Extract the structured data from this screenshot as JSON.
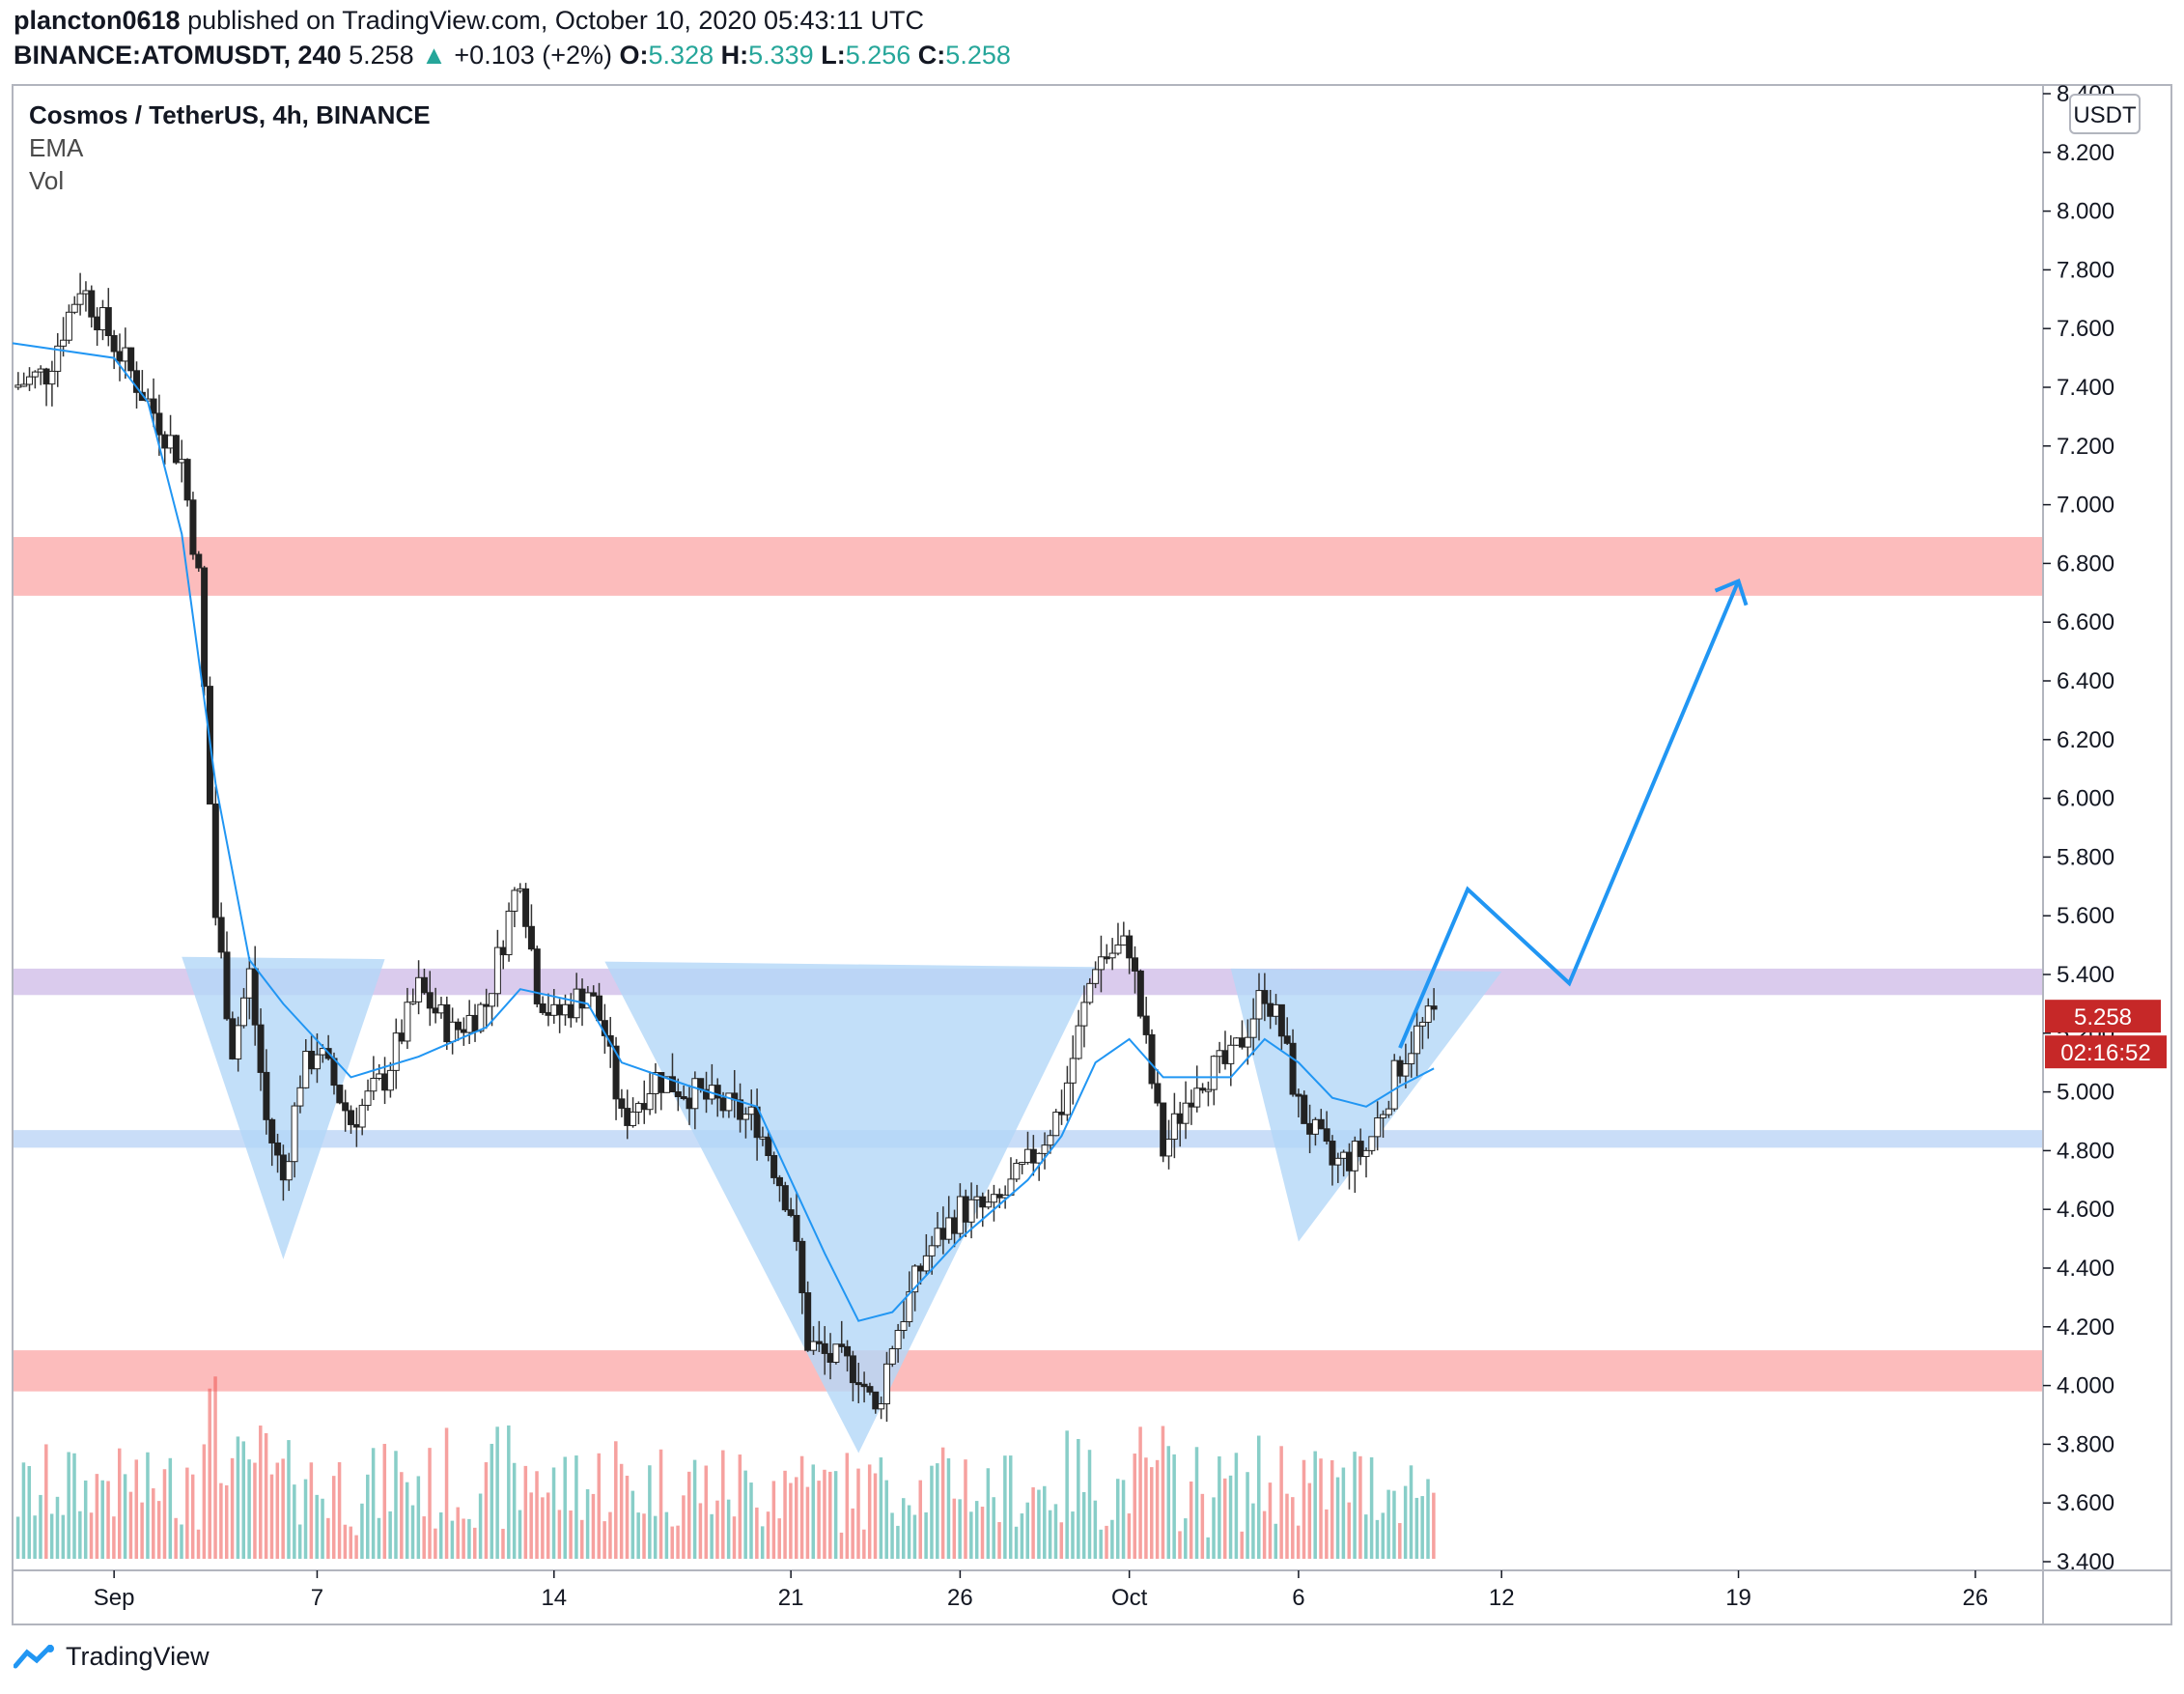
{
  "header": {
    "publisher": "plancton0618",
    "published_text": "published on TradingView.com, October 10, 2020 05:43:11 UTC",
    "symbol": "BINANCE:ATOMUSDT, 240",
    "last": "5.258",
    "arrow": "▲",
    "change": "+0.103 (+2%)",
    "o_label": "O:",
    "o": "5.328",
    "h_label": "H:",
    "h": "5.339",
    "l_label": "L:",
    "l": "5.256",
    "c_label": "C:",
    "c": "5.258"
  },
  "legend": {
    "title": "Cosmos / TetherUS, 4h, BINANCE",
    "ema": "EMA",
    "vol": "Vol"
  },
  "price_axis": {
    "currency": "USDT",
    "last_price_label": "5.258",
    "countdown": "02:16:52"
  },
  "footer": {
    "brand": "TradingView",
    "logo_icon": "tradingview-logo-icon"
  },
  "colors": {
    "up": "#26a69a",
    "down": "#ef5350",
    "ema": "#2196f3",
    "resistance_zone": "#fcb8b8",
    "neckline_zone": "#d8c8ec",
    "support_zone": "#c6dbf8",
    "pattern_fill": "#b3d7f8",
    "projection": "#2196f3",
    "label_bg": "#c62828"
  },
  "chart_data": {
    "type": "candlestick",
    "title": "Cosmos / TetherUS, 4h, BINANCE",
    "symbol": "ATOMUSDT",
    "timeframe": "4h",
    "ylim": [
      3.4,
      8.4
    ],
    "yticks": [
      3.4,
      3.6,
      3.8,
      4.0,
      4.2,
      4.4,
      4.6,
      4.8,
      5.0,
      5.2,
      5.4,
      5.6,
      5.8,
      6.0,
      6.2,
      6.4,
      6.6,
      6.8,
      7.0,
      7.2,
      7.4,
      7.6,
      7.8,
      8.0,
      8.2,
      8.4
    ],
    "ytick_labels": [
      "3.400",
      "3.600",
      "3.800",
      "4.000",
      "4.200",
      "4.400",
      "4.600",
      "4.800",
      "5.000",
      "5.200",
      "5.400",
      "5.600",
      "5.800",
      "6.000",
      "6.200",
      "6.400",
      "6.600",
      "6.800",
      "7.000",
      "7.200",
      "7.400",
      "7.600",
      "7.800",
      "8.000",
      "8.200",
      "8.400"
    ],
    "xlim": [
      "2020-08-29",
      "2020-10-28"
    ],
    "xticks": [
      {
        "date": "2020-09-01",
        "label": "Sep"
      },
      {
        "date": "2020-09-07",
        "label": "7"
      },
      {
        "date": "2020-09-14",
        "label": "14"
      },
      {
        "date": "2020-09-21",
        "label": "21"
      },
      {
        "date": "2020-09-26",
        "label": "26"
      },
      {
        "date": "2020-10-01",
        "label": "Oct"
      },
      {
        "date": "2020-10-06",
        "label": "6"
      },
      {
        "date": "2020-10-12",
        "label": "12"
      },
      {
        "date": "2020-10-19",
        "label": "19"
      },
      {
        "date": "2020-10-26",
        "label": "26"
      }
    ],
    "last_price": 5.258,
    "zones": [
      {
        "name": "resistance",
        "from": 6.69,
        "to": 6.89
      },
      {
        "name": "neckline",
        "from": 5.33,
        "to": 5.42
      },
      {
        "name": "support-mid",
        "from": 4.81,
        "to": 4.87
      },
      {
        "name": "support-low",
        "from": 3.98,
        "to": 4.12
      }
    ],
    "inverse_head_shoulders": {
      "neckline": [
        [
          "2020-09-03",
          5.46
        ],
        [
          "2020-10-12",
          5.41
        ]
      ],
      "left_shoulder_low": [
        "2020-09-06",
        4.43
      ],
      "head_low": [
        "2020-09-23",
        3.77
      ],
      "right_shoulder_low": [
        "2020-10-06",
        4.49
      ]
    },
    "projection_path": [
      [
        "2020-10-09",
        5.15
      ],
      [
        "2020-10-11",
        5.69
      ],
      [
        "2020-10-14",
        5.37
      ],
      [
        "2020-10-19",
        6.74
      ]
    ],
    "series": [
      {
        "name": "close (approx.)",
        "points": [
          [
            "2020-08-29",
            7.4
          ],
          [
            "2020-08-30",
            7.45
          ],
          [
            "2020-08-31",
            7.75
          ],
          [
            "2020-09-01",
            7.55
          ],
          [
            "2020-09-02",
            7.35
          ],
          [
            "2020-09-03",
            7.15
          ],
          [
            "2020-09-03T12",
            6.75
          ],
          [
            "2020-09-04",
            5.6
          ],
          [
            "2020-09-04T12",
            5.15
          ],
          [
            "2020-09-05",
            5.4
          ],
          [
            "2020-09-05T12",
            4.9
          ],
          [
            "2020-09-06",
            4.7
          ],
          [
            "2020-09-06T12",
            5.05
          ],
          [
            "2020-09-07",
            5.15
          ],
          [
            "2020-09-08",
            4.9
          ],
          [
            "2020-09-09",
            5.05
          ],
          [
            "2020-09-10",
            5.35
          ],
          [
            "2020-09-11",
            5.2
          ],
          [
            "2020-09-12",
            5.3
          ],
          [
            "2020-09-13",
            5.75
          ],
          [
            "2020-09-13T12",
            5.35
          ],
          [
            "2020-09-14",
            5.25
          ],
          [
            "2020-09-15",
            5.35
          ],
          [
            "2020-09-15T12",
            5.2
          ],
          [
            "2020-09-16",
            4.9
          ],
          [
            "2020-09-17",
            5.05
          ],
          [
            "2020-09-18",
            5.0
          ],
          [
            "2020-09-19",
            4.95
          ],
          [
            "2020-09-20",
            4.9
          ],
          [
            "2020-09-21",
            4.6
          ],
          [
            "2020-09-21T12",
            4.15
          ],
          [
            "2020-09-22",
            4.1
          ],
          [
            "2020-09-23",
            4.05
          ],
          [
            "2020-09-23T12",
            3.9
          ],
          [
            "2020-09-24",
            4.15
          ],
          [
            "2020-09-25",
            4.45
          ],
          [
            "2020-09-26",
            4.6
          ],
          [
            "2020-09-27",
            4.6
          ],
          [
            "2020-09-28",
            4.75
          ],
          [
            "2020-09-29",
            4.95
          ],
          [
            "2020-09-30",
            5.45
          ],
          [
            "2020-10-01",
            5.5
          ],
          [
            "2020-10-01T12",
            5.15
          ],
          [
            "2020-10-02",
            4.8
          ],
          [
            "2020-10-03",
            5.05
          ],
          [
            "2020-10-04",
            5.1
          ],
          [
            "2020-10-05",
            5.35
          ],
          [
            "2020-10-05T12",
            5.2
          ],
          [
            "2020-10-06",
            4.95
          ],
          [
            "2020-10-07",
            4.75
          ],
          [
            "2020-10-08",
            4.8
          ],
          [
            "2020-10-08T12",
            4.95
          ],
          [
            "2020-10-09",
            5.1
          ],
          [
            "2020-10-09T12",
            5.2
          ],
          [
            "2020-10-10",
            5.258
          ]
        ]
      },
      {
        "name": "EMA",
        "points": [
          [
            "2020-08-29",
            7.55
          ],
          [
            "2020-09-01",
            7.5
          ],
          [
            "2020-09-02",
            7.35
          ],
          [
            "2020-09-03",
            6.9
          ],
          [
            "2020-09-04",
            6.05
          ],
          [
            "2020-09-05",
            5.45
          ],
          [
            "2020-09-06",
            5.3
          ],
          [
            "2020-09-08",
            5.05
          ],
          [
            "2020-09-10",
            5.12
          ],
          [
            "2020-09-12",
            5.22
          ],
          [
            "2020-09-13",
            5.35
          ],
          [
            "2020-09-15",
            5.3
          ],
          [
            "2020-09-16",
            5.1
          ],
          [
            "2020-09-18",
            5.02
          ],
          [
            "2020-09-20",
            4.95
          ],
          [
            "2020-09-21",
            4.7
          ],
          [
            "2020-09-22",
            4.45
          ],
          [
            "2020-09-23",
            4.22
          ],
          [
            "2020-09-24",
            4.25
          ],
          [
            "2020-09-26",
            4.5
          ],
          [
            "2020-09-28",
            4.7
          ],
          [
            "2020-09-29",
            4.85
          ],
          [
            "2020-09-30",
            5.1
          ],
          [
            "2020-10-01",
            5.18
          ],
          [
            "2020-10-02",
            5.05
          ],
          [
            "2020-10-04",
            5.05
          ],
          [
            "2020-10-05",
            5.18
          ],
          [
            "2020-10-06",
            5.1
          ],
          [
            "2020-10-07",
            4.98
          ],
          [
            "2020-10-08",
            4.95
          ],
          [
            "2020-10-09",
            5.02
          ],
          [
            "2020-10-10",
            5.08
          ]
        ]
      }
    ]
  }
}
